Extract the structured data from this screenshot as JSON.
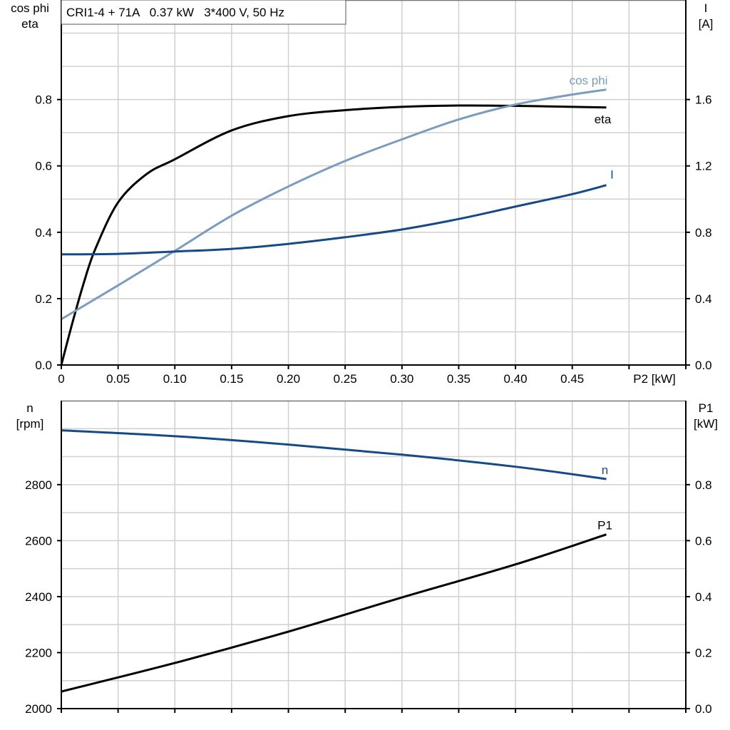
{
  "chart_data": [
    {
      "type": "line",
      "title": "CRI1-4 + 71A   0.37 kW   3*400 V, 50 Hz",
      "xlabel": "P2 [kW]",
      "ylabel_left": [
        "cos phi",
        "eta"
      ],
      "ylabel_right": [
        "I",
        "[A]"
      ],
      "xlim": [
        0,
        0.55
      ],
      "ylim_left": [
        0,
        1.1
      ],
      "ylim_right": [
        0,
        2.2
      ],
      "xticks": [
        0,
        0.05,
        0.1,
        0.15,
        0.2,
        0.25,
        0.3,
        0.35,
        0.4,
        0.45
      ],
      "xtick_labels": [
        "0",
        "0.05",
        "0.10",
        "0.15",
        "0.20",
        "0.25",
        "0.30",
        "0.35",
        "0.40",
        "0.45"
      ],
      "yticks_left": [
        "0.0",
        "0.2",
        "0.4",
        "0.6",
        "0.8"
      ],
      "yticks_right": [
        "0.0",
        "0.4",
        "0.8",
        "1.2",
        "1.6"
      ],
      "grid": true,
      "series": [
        {
          "name": "eta",
          "axis": "left",
          "color": "#000000",
          "x": [
            0,
            0.01,
            0.02,
            0.03,
            0.05,
            0.075,
            0.1,
            0.15,
            0.2,
            0.25,
            0.3,
            0.35,
            0.4,
            0.45,
            0.48
          ],
          "y": [
            0,
            0.13,
            0.25,
            0.35,
            0.49,
            0.575,
            0.62,
            0.707,
            0.75,
            0.768,
            0.778,
            0.782,
            0.781,
            0.778,
            0.776
          ]
        },
        {
          "name": "cos phi",
          "axis": "left",
          "color": "#7a9cbe",
          "x": [
            0,
            0.05,
            0.1,
            0.15,
            0.2,
            0.25,
            0.3,
            0.35,
            0.4,
            0.45,
            0.48
          ],
          "y": [
            0.138,
            0.24,
            0.344,
            0.45,
            0.538,
            0.615,
            0.68,
            0.74,
            0.785,
            0.815,
            0.83
          ]
        },
        {
          "name": "I",
          "axis": "right",
          "color": "#154a87",
          "x": [
            0,
            0.05,
            0.1,
            0.15,
            0.2,
            0.25,
            0.3,
            0.35,
            0.4,
            0.45,
            0.48
          ],
          "y": [
            0.667,
            0.67,
            0.684,
            0.7,
            0.73,
            0.77,
            0.817,
            0.88,
            0.955,
            1.03,
            1.084
          ]
        }
      ]
    },
    {
      "type": "line",
      "ylabel_left": [
        "n",
        "[rpm]"
      ],
      "ylabel_right": [
        "P1",
        "[kW]"
      ],
      "xlim": [
        0,
        0.55
      ],
      "ylim_left": [
        2000,
        3100
      ],
      "ylim_right": [
        0,
        1.1
      ],
      "yticks_left": [
        "2000",
        "2200",
        "2400",
        "2600",
        "2800"
      ],
      "yticks_right": [
        "0.0",
        "0.2",
        "0.4",
        "0.6",
        "0.8"
      ],
      "grid": true,
      "series": [
        {
          "name": "n",
          "axis": "left",
          "color": "#154a87",
          "x": [
            0,
            0.1,
            0.2,
            0.3,
            0.4,
            0.48
          ],
          "y": [
            2994,
            2973,
            2943,
            2907,
            2864,
            2820
          ]
        },
        {
          "name": "P1",
          "axis": "right",
          "color": "#000000",
          "x": [
            0,
            0.1,
            0.2,
            0.3,
            0.4,
            0.48
          ],
          "y": [
            0.061,
            0.163,
            0.275,
            0.397,
            0.515,
            0.622
          ]
        }
      ]
    }
  ]
}
